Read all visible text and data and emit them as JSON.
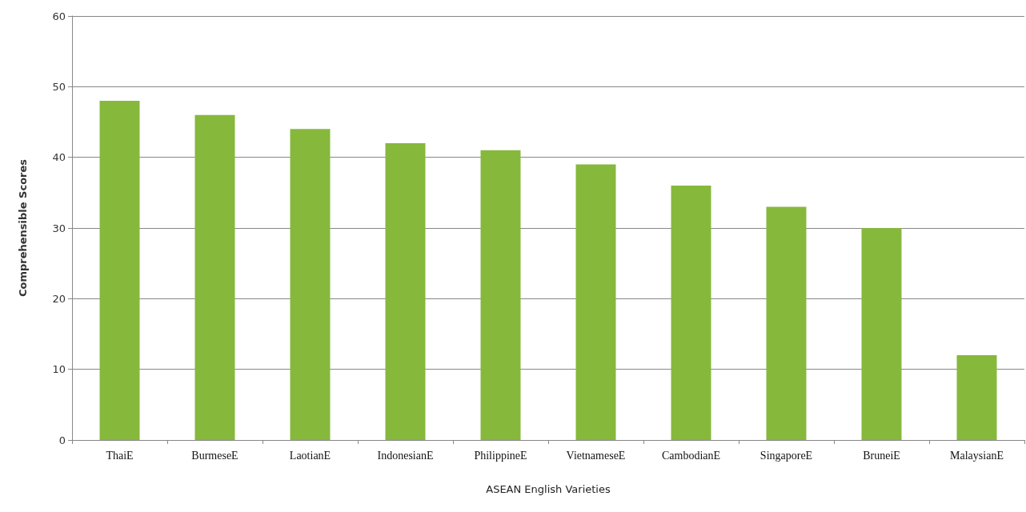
{
  "chart_data": {
    "type": "bar",
    "xlabel": "ASEAN English Varieties",
    "ylabel": "Comprehensible Scores",
    "categories": [
      "ThaiE",
      "BurmeseE",
      "LaotianE",
      "IndonesianE",
      "PhilippineE",
      "VietnameseE",
      "CambodianE",
      "SingaporeE",
      "BruneiE",
      "MalaysianE"
    ],
    "values": [
      48,
      46,
      44,
      42,
      41,
      39,
      36,
      33,
      30,
      12
    ],
    "color": "#86b83c",
    "ylim": [
      0,
      60
    ],
    "yticks": [
      0,
      10,
      20,
      30,
      40,
      50,
      60
    ],
    "grid": "y"
  }
}
